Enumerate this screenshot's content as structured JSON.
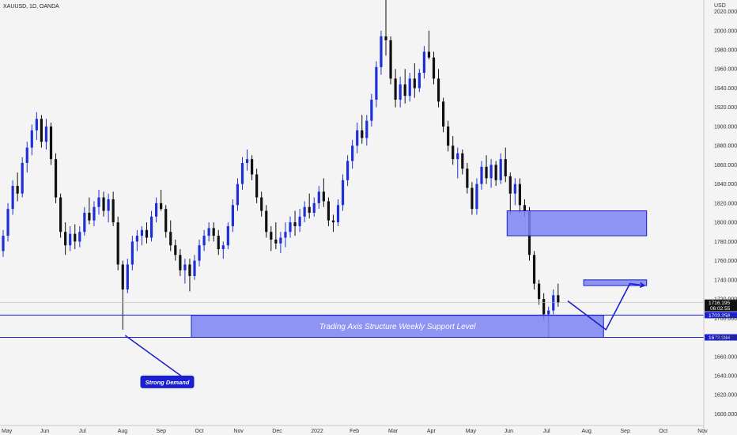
{
  "header": {
    "symbol_line": "XAUUSD, 1D, OANDA",
    "currency": "USD"
  },
  "colors": {
    "bull": "#1e2fd6",
    "bear": "#111111",
    "zone_fill": "#7b83f0",
    "zone_stroke": "#1a1fd0",
    "label_bg": "#1a1fd0",
    "background": "#f4f4f4"
  },
  "chart_data": {
    "type": "candlestick",
    "title": "",
    "xlabel": "",
    "ylabel": "",
    "ylim": [
      1588,
      2032
    ],
    "y_ticks": [
      1600,
      1620,
      1640,
      1660,
      1680,
      1700,
      1720,
      1740,
      1760,
      1780,
      1800,
      1820,
      1840,
      1860,
      1880,
      1900,
      1920,
      1940,
      1960,
      1980,
      2000,
      2020
    ],
    "x_ticks": [
      "May",
      "Jun",
      "Jul",
      "Aug",
      "Sep",
      "Oct",
      "Nov",
      "Dec",
      "2022",
      "Feb",
      "Mar",
      "Apr",
      "May",
      "Jun",
      "Jul",
      "Aug",
      "Sep",
      "Oct",
      "Nov"
    ],
    "grid": false,
    "series": [
      {
        "values": [
          [
            1770,
            1792,
            1764,
            1786
          ],
          [
            1786,
            1820,
            1780,
            1814
          ],
          [
            1814,
            1844,
            1808,
            1838
          ],
          [
            1838,
            1852,
            1822,
            1830
          ],
          [
            1830,
            1868,
            1826,
            1862
          ],
          [
            1862,
            1884,
            1852,
            1878
          ],
          [
            1878,
            1902,
            1870,
            1896
          ],
          [
            1896,
            1915,
            1886,
            1908
          ],
          [
            1908,
            1912,
            1878,
            1884
          ],
          [
            1884,
            1908,
            1876,
            1900
          ],
          [
            1900,
            1904,
            1860,
            1866
          ],
          [
            1866,
            1872,
            1820,
            1826
          ],
          [
            1826,
            1830,
            1784,
            1790
          ],
          [
            1790,
            1800,
            1766,
            1776
          ],
          [
            1776,
            1796,
            1770,
            1788
          ],
          [
            1788,
            1798,
            1772,
            1780
          ],
          [
            1780,
            1796,
            1774,
            1790
          ],
          [
            1790,
            1816,
            1786,
            1810
          ],
          [
            1810,
            1826,
            1798,
            1802
          ],
          [
            1802,
            1822,
            1796,
            1816
          ],
          [
            1816,
            1834,
            1808,
            1826
          ],
          [
            1826,
            1832,
            1806,
            1812
          ],
          [
            1812,
            1830,
            1800,
            1824
          ],
          [
            1824,
            1832,
            1796,
            1800
          ],
          [
            1800,
            1806,
            1750,
            1756
          ],
          [
            1756,
            1760,
            1688,
            1730
          ],
          [
            1730,
            1762,
            1726,
            1756
          ],
          [
            1756,
            1786,
            1750,
            1780
          ],
          [
            1780,
            1792,
            1770,
            1786
          ],
          [
            1786,
            1796,
            1776,
            1792
          ],
          [
            1792,
            1800,
            1778,
            1784
          ],
          [
            1784,
            1812,
            1780,
            1806
          ],
          [
            1806,
            1826,
            1800,
            1820
          ],
          [
            1820,
            1834,
            1812,
            1814
          ],
          [
            1814,
            1818,
            1784,
            1790
          ],
          [
            1790,
            1802,
            1770,
            1776
          ],
          [
            1776,
            1782,
            1760,
            1766
          ],
          [
            1766,
            1772,
            1744,
            1750
          ],
          [
            1750,
            1762,
            1736,
            1756
          ],
          [
            1756,
            1762,
            1728,
            1744
          ],
          [
            1744,
            1766,
            1740,
            1760
          ],
          [
            1760,
            1782,
            1754,
            1776
          ],
          [
            1776,
            1792,
            1770,
            1786
          ],
          [
            1786,
            1800,
            1780,
            1794
          ],
          [
            1794,
            1800,
            1780,
            1786
          ],
          [
            1786,
            1792,
            1766,
            1772
          ],
          [
            1772,
            1780,
            1762,
            1776
          ],
          [
            1776,
            1800,
            1772,
            1796
          ],
          [
            1796,
            1824,
            1790,
            1818
          ],
          [
            1818,
            1846,
            1812,
            1840
          ],
          [
            1840,
            1868,
            1834,
            1862
          ],
          [
            1862,
            1876,
            1854,
            1866
          ],
          [
            1866,
            1870,
            1844,
            1850
          ],
          [
            1850,
            1856,
            1820,
            1826
          ],
          [
            1826,
            1832,
            1806,
            1812
          ],
          [
            1812,
            1818,
            1784,
            1790
          ],
          [
            1790,
            1796,
            1770,
            1782
          ],
          [
            1782,
            1800,
            1772,
            1778
          ],
          [
            1778,
            1790,
            1768,
            1784
          ],
          [
            1784,
            1800,
            1774,
            1790
          ],
          [
            1790,
            1806,
            1784,
            1800
          ],
          [
            1800,
            1812,
            1786,
            1796
          ],
          [
            1796,
            1814,
            1790,
            1806
          ],
          [
            1806,
            1822,
            1800,
            1816
          ],
          [
            1816,
            1830,
            1804,
            1810
          ],
          [
            1810,
            1826,
            1806,
            1820
          ],
          [
            1820,
            1838,
            1814,
            1832
          ],
          [
            1832,
            1846,
            1816,
            1822
          ],
          [
            1822,
            1826,
            1796,
            1802
          ],
          [
            1802,
            1808,
            1790,
            1800
          ],
          [
            1800,
            1824,
            1796,
            1818
          ],
          [
            1818,
            1850,
            1812,
            1844
          ],
          [
            1844,
            1870,
            1838,
            1864
          ],
          [
            1864,
            1886,
            1856,
            1880
          ],
          [
            1880,
            1904,
            1872,
            1896
          ],
          [
            1896,
            1912,
            1882,
            1888
          ],
          [
            1888,
            1912,
            1880,
            1906
          ],
          [
            1906,
            1934,
            1900,
            1928
          ],
          [
            1928,
            1968,
            1920,
            1962
          ],
          [
            1962,
            2000,
            1954,
            1994
          ],
          [
            1994,
            2070,
            1974,
            1990
          ],
          [
            1990,
            1994,
            1944,
            1950
          ],
          [
            1950,
            1960,
            1920,
            1928
          ],
          [
            1928,
            1952,
            1920,
            1944
          ],
          [
            1944,
            1960,
            1924,
            1932
          ],
          [
            1932,
            1956,
            1926,
            1950
          ],
          [
            1950,
            1966,
            1930,
            1940
          ],
          [
            1940,
            1960,
            1936,
            1956
          ],
          [
            1956,
            1984,
            1950,
            1978
          ],
          [
            1978,
            2000,
            1970,
            1972
          ],
          [
            1972,
            1978,
            1944,
            1950
          ],
          [
            1950,
            1960,
            1920,
            1926
          ],
          [
            1926,
            1930,
            1894,
            1900
          ],
          [
            1900,
            1906,
            1874,
            1880
          ],
          [
            1880,
            1890,
            1860,
            1866
          ],
          [
            1866,
            1878,
            1846,
            1872
          ],
          [
            1872,
            1876,
            1850,
            1856
          ],
          [
            1856,
            1862,
            1830,
            1836
          ],
          [
            1836,
            1842,
            1808,
            1814
          ],
          [
            1814,
            1846,
            1808,
            1840
          ],
          [
            1840,
            1864,
            1834,
            1858
          ],
          [
            1858,
            1870,
            1840,
            1846
          ],
          [
            1846,
            1866,
            1836,
            1860
          ],
          [
            1860,
            1864,
            1838,
            1844
          ],
          [
            1844,
            1872,
            1840,
            1866
          ],
          [
            1866,
            1878,
            1842,
            1848
          ],
          [
            1848,
            1852,
            1808,
            1830
          ],
          [
            1830,
            1846,
            1818,
            1840
          ],
          [
            1840,
            1846,
            1810,
            1818
          ],
          [
            1818,
            1824,
            1806,
            1812
          ],
          [
            1812,
            1816,
            1760,
            1766
          ],
          [
            1766,
            1770,
            1730,
            1736
          ],
          [
            1736,
            1740,
            1714,
            1720
          ],
          [
            1720,
            1726,
            1698,
            1704
          ],
          [
            1704,
            1712,
            1680,
            1708
          ],
          [
            1708,
            1730,
            1704,
            1724
          ],
          [
            1724,
            1736,
            1712,
            1716
          ]
        ]
      }
    ],
    "levels": [
      {
        "price": 1716.195,
        "label": "1716.195",
        "sublabel": "06:02:55"
      },
      {
        "price": 1703.258,
        "label": "1703.258"
      },
      {
        "price": 1679.984,
        "label": "1679.984"
      }
    ],
    "zones": [
      {
        "name": "weekly-support",
        "label": "Trading Axis Structure Weekly Support Level",
        "price_low": 1680,
        "price_high": 1703,
        "from_bar": 40,
        "to_bar": 125
      },
      {
        "name": "upper-resistance",
        "price_low": 1786,
        "price_high": 1812,
        "from_bar": 106,
        "to_bar": 134
      },
      {
        "name": "retest-box",
        "price_low": 1734,
        "price_high": 1740,
        "from_bar": 122,
        "to_bar": 134
      }
    ],
    "annotations": [
      {
        "name": "strong-demand",
        "text": "Strong Demand",
        "price": 1650,
        "bar": 30
      }
    ],
    "projection": [
      [
        118,
        1718
      ],
      [
        126,
        1688
      ],
      [
        131,
        1736
      ],
      [
        134,
        1734
      ]
    ]
  }
}
